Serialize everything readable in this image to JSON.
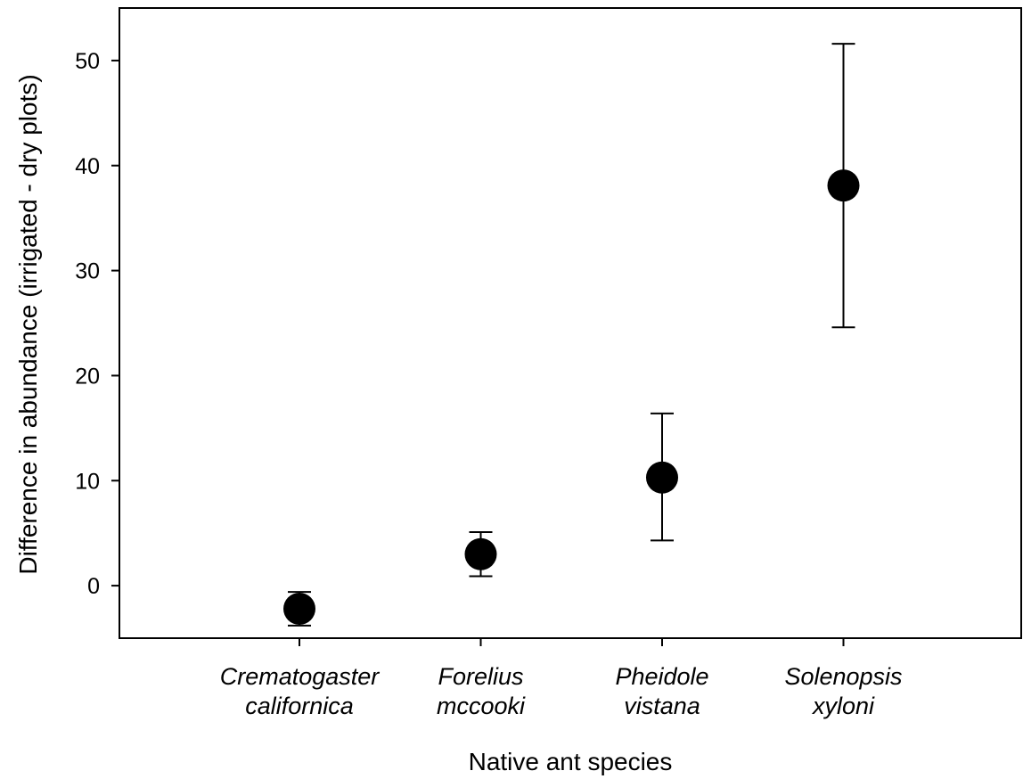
{
  "chart_data": {
    "type": "scatter",
    "title": "",
    "xlabel": "Native ant species",
    "ylabel": "Difference in abundance (irrigated - dry plots)",
    "ylim": [
      -5,
      55
    ],
    "yticks": [
      "0",
      "10",
      "20",
      "30",
      "40",
      "50"
    ],
    "categories": [
      [
        "Crematogaster",
        "californica"
      ],
      [
        "Forelius",
        "mccooki"
      ],
      [
        "Pheidole",
        "vistana"
      ],
      [
        "Solenopsis",
        "xyloni"
      ]
    ],
    "values": [
      -2.2,
      3.0,
      10.3,
      38.1
    ],
    "error_low": [
      -3.8,
      0.9,
      4.3,
      24.6
    ],
    "error_high": [
      -0.6,
      5.1,
      16.4,
      51.6
    ],
    "grid": false,
    "legend": false,
    "colors": {
      "marker": "#000000",
      "axis": "#000000"
    }
  }
}
